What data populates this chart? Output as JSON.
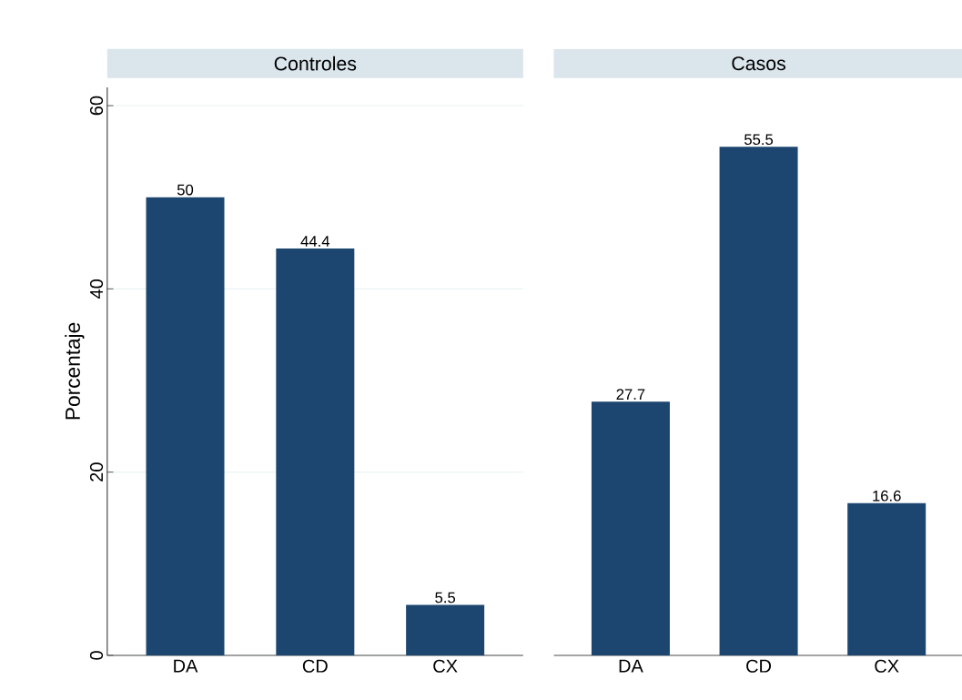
{
  "chart_data": [
    {
      "type": "bar",
      "title": "Controles",
      "ylabel": "Porcentaje",
      "categories": [
        "DA",
        "CD",
        "CX"
      ],
      "values": [
        50,
        44.4,
        5.5
      ],
      "color": "#1c4670",
      "ylim": [
        0,
        62
      ],
      "yticks": [
        0,
        20,
        40,
        60
      ],
      "grid": "y",
      "data_labels": true
    },
    {
      "type": "bar",
      "title": "Casos",
      "categories": [
        "DA",
        "CD",
        "CX"
      ],
      "values": [
        27.7,
        55.5,
        16.6
      ],
      "color": "#1c4670",
      "ylim": [
        0,
        60
      ],
      "yticks": [
        0,
        20,
        40,
        60
      ],
      "grid": "y",
      "data_labels": true,
      "tick_labels": "x"
    }
  ]
}
